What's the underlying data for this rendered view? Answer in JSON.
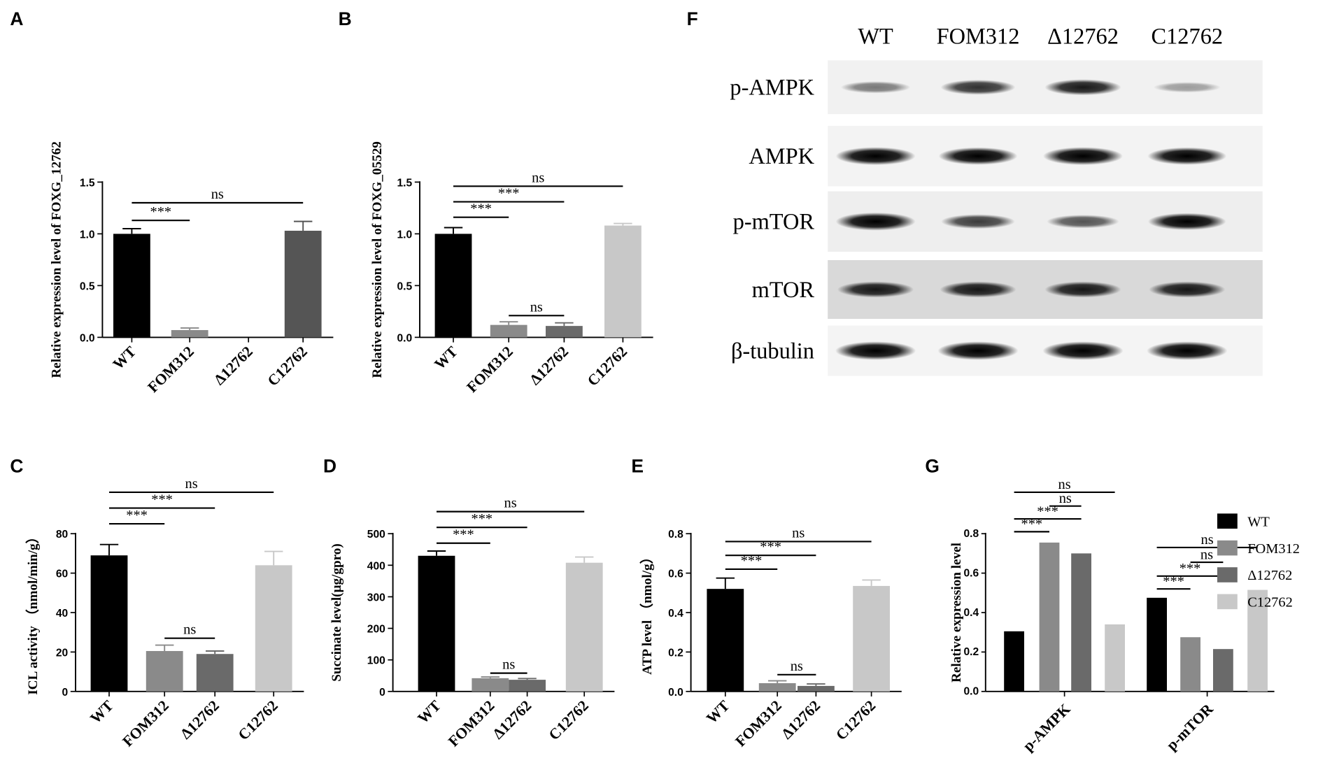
{
  "panels": {
    "A": "A",
    "B": "B",
    "C": "C",
    "D": "D",
    "E": "E",
    "F": "F",
    "G": "G"
  },
  "chart_data": [
    {
      "id": "A",
      "type": "bar",
      "categories": [
        "WT",
        "FOM312",
        "Δ12762",
        "C12762"
      ],
      "values": [
        1.0,
        0.07,
        0.0,
        1.03
      ],
      "errors": [
        0.05,
        0.02,
        0,
        0.09
      ],
      "colors": [
        "#000000",
        "#8a8a8a",
        "#6a6a6a",
        "#555555"
      ],
      "ylabel": "Relative expression level of FOXG_12762",
      "ylim": [
        0,
        1.5
      ],
      "yticks": [
        0,
        0.5,
        1.0,
        1.5
      ],
      "ytick_labels": [
        "0.0",
        "0.5",
        "1.0",
        "1.5"
      ],
      "comparisons": [
        {
          "from": 0,
          "to": 1,
          "label": "***",
          "y": 1.13
        },
        {
          "from": 0,
          "to": 3,
          "label": "ns",
          "y": 1.3
        }
      ]
    },
    {
      "id": "B",
      "type": "bar",
      "categories": [
        "WT",
        "FOM312",
        "Δ12762",
        "C12762"
      ],
      "values": [
        1.0,
        0.12,
        0.11,
        1.08
      ],
      "errors": [
        0.06,
        0.03,
        0.03,
        0.02
      ],
      "colors": [
        "#000000",
        "#8a8a8a",
        "#6a6a6a",
        "#c8c8c8"
      ],
      "ylabel": "Relative expression level of FOXG_05529",
      "ylim": [
        0,
        1.5
      ],
      "yticks": [
        0,
        0.5,
        1.0,
        1.5
      ],
      "ytick_labels": [
        "0.0",
        "0.5",
        "1.0",
        "1.5"
      ],
      "comparisons": [
        {
          "from": 0,
          "to": 1,
          "label": "***",
          "y": 1.16
        },
        {
          "from": 0,
          "to": 2,
          "label": "***",
          "y": 1.31
        },
        {
          "from": 0,
          "to": 3,
          "label": "ns",
          "y": 1.46
        },
        {
          "from": 1,
          "to": 2,
          "label": "ns",
          "y": 0.21
        }
      ]
    },
    {
      "id": "C",
      "type": "bar",
      "categories": [
        "WT",
        "FOM312",
        "Δ12762",
        "C12762"
      ],
      "values": [
        69,
        20.5,
        19,
        64
      ],
      "errors": [
        5.5,
        3,
        1.5,
        7
      ],
      "colors": [
        "#000000",
        "#8a8a8a",
        "#6a6a6a",
        "#c8c8c8"
      ],
      "ylabel": "ICL activity （nmol/min/g）",
      "ylim": [
        0,
        80
      ],
      "yticks": [
        0,
        20,
        40,
        60,
        80
      ],
      "ytick_labels": [
        "0",
        "20",
        "40",
        "60",
        "80"
      ],
      "comparisons": [
        {
          "from": 0,
          "to": 1,
          "label": "***",
          "y": 85
        },
        {
          "from": 0,
          "to": 2,
          "label": "***",
          "y": 93
        },
        {
          "from": 0,
          "to": 3,
          "label": "ns",
          "y": 101
        },
        {
          "from": 1,
          "to": 2,
          "label": "ns",
          "y": 27
        }
      ]
    },
    {
      "id": "D",
      "type": "bar",
      "categories": [
        "WT",
        "FOM312",
        "Δ12762",
        "C12762"
      ],
      "values": [
        430,
        42,
        37,
        408
      ],
      "errors": [
        15,
        4,
        4,
        18
      ],
      "colors": [
        "#000000",
        "#8a8a8a",
        "#6a6a6a",
        "#c8c8c8"
      ],
      "ylabel": "Succinate level(μg/gpro)",
      "ylim": [
        0,
        500
      ],
      "yticks": [
        0,
        100,
        200,
        300,
        400,
        500
      ],
      "ytick_labels": [
        "0",
        "100",
        "200",
        "300",
        "400",
        "500"
      ],
      "comparisons": [
        {
          "from": 0,
          "to": 1,
          "label": "***",
          "y": 470
        },
        {
          "from": 0,
          "to": 2,
          "label": "***",
          "y": 520
        },
        {
          "from": 0,
          "to": 3,
          "label": "ns",
          "y": 570
        },
        {
          "from": 1,
          "to": 2,
          "label": "ns",
          "y": 58
        }
      ]
    },
    {
      "id": "E",
      "type": "bar",
      "categories": [
        "WT",
        "FOM312",
        "Δ12762",
        "C12762"
      ],
      "values": [
        0.52,
        0.042,
        0.028,
        0.535
      ],
      "errors": [
        0.055,
        0.012,
        0.01,
        0.03
      ],
      "colors": [
        "#000000",
        "#8a8a8a",
        "#6a6a6a",
        "#c8c8c8"
      ],
      "ylabel": "ATP level （nmol/g）",
      "ylim": [
        0,
        0.8
      ],
      "yticks": [
        0,
        0.2,
        0.4,
        0.6,
        0.8
      ],
      "ytick_labels": [
        "0.0",
        "0.2",
        "0.4",
        "0.6",
        "0.8"
      ],
      "comparisons": [
        {
          "from": 0,
          "to": 1,
          "label": "***",
          "y": 0.62
        },
        {
          "from": 0,
          "to": 2,
          "label": "***",
          "y": 0.69
        },
        {
          "from": 0,
          "to": 3,
          "label": "ns",
          "y": 0.76
        },
        {
          "from": 1,
          "to": 2,
          "label": "ns",
          "y": 0.085
        }
      ]
    },
    {
      "id": "G",
      "type": "bar",
      "categories": [
        "p-AMPK",
        "p-mTOR"
      ],
      "series": [
        {
          "name": "WT",
          "color": "#000000",
          "values": [
            0.305,
            0.475
          ]
        },
        {
          "name": "FOM312",
          "color": "#8a8a8a",
          "values": [
            0.755,
            0.275
          ]
        },
        {
          "name": "Δ12762",
          "color": "#6a6a6a",
          "values": [
            0.7,
            0.215
          ]
        },
        {
          "name": "C12762",
          "color": "#c8c8c8",
          "values": [
            0.34,
            0.515
          ]
        }
      ],
      "ylabel": "Relative expression level",
      "ylim": [
        0,
        0.8
      ],
      "yticks": [
        0,
        0.2,
        0.4,
        0.6,
        0.8
      ],
      "ytick_labels": [
        "0.0",
        "0.2",
        "0.4",
        "0.6",
        "0.8"
      ],
      "legend": "right",
      "comparisons": [
        {
          "group": 0,
          "from": 0,
          "to": 1,
          "label": "***",
          "y": 0.81
        },
        {
          "group": 0,
          "from": 0,
          "to": 2,
          "label": "***",
          "y": 0.875
        },
        {
          "group": 0,
          "from": 1,
          "to": 2,
          "label": "ns",
          "y": 0.94
        },
        {
          "group": 0,
          "from": 0,
          "to": 3,
          "label": "ns",
          "y": 1.01
        },
        {
          "group": 1,
          "from": 0,
          "to": 1,
          "label": "***",
          "y": 0.52
        },
        {
          "group": 1,
          "from": 0,
          "to": 2,
          "label": "***",
          "y": 0.585
        },
        {
          "group": 1,
          "from": 1,
          "to": 2,
          "label": "ns",
          "y": 0.655
        },
        {
          "group": 1,
          "from": 0,
          "to": 3,
          "label": "ns",
          "y": 0.73
        }
      ]
    }
  ],
  "blot": {
    "columns": [
      "WT",
      "FOM312",
      "Δ12762",
      "C12762"
    ],
    "rows": [
      {
        "label": "p-AMPK",
        "intensity": [
          0.35,
          0.65,
          0.75,
          0.2
        ],
        "bg": "#f1f1f1"
      },
      {
        "label": "AMPK",
        "intensity": [
          0.95,
          0.9,
          0.95,
          0.9
        ],
        "bg": "#f3f3f3"
      },
      {
        "label": "p-mTOR",
        "intensity": [
          0.95,
          0.6,
          0.5,
          0.85
        ],
        "bg": "#eeeeee"
      },
      {
        "label": "mTOR",
        "intensity": [
          0.75,
          0.75,
          0.75,
          0.75
        ],
        "bg": "#d9d9d9"
      },
      {
        "label": "β-tubulin",
        "intensity": [
          1.0,
          1.0,
          1.0,
          1.0
        ],
        "bg": "#f4f4f4"
      }
    ]
  }
}
